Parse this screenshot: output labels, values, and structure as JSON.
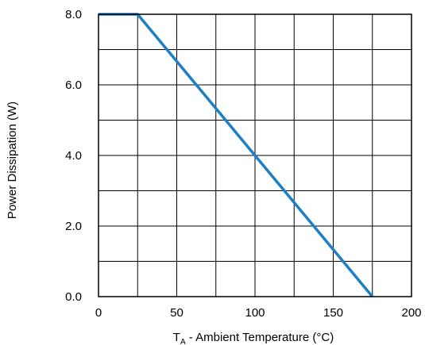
{
  "chart_data": {
    "type": "line",
    "title": "",
    "xlabel_main": "T",
    "xlabel_sub": "A",
    "xlabel_rest": " - Ambient Temperature (°C)",
    "ylabel": "Power Dissipation (W)",
    "xlim": [
      0,
      200
    ],
    "ylim": [
      0,
      8
    ],
    "xticks": [
      0,
      50,
      100,
      150,
      200
    ],
    "xtick_labels": [
      "0",
      "50",
      "100",
      "150",
      "200"
    ],
    "yticks": [
      0,
      2,
      4,
      6,
      8
    ],
    "ytick_labels": [
      "0.0",
      "2.0",
      "4.0",
      "6.0",
      "8.0"
    ],
    "x_minor_grid": [
      25,
      75,
      125,
      175
    ],
    "y_minor_grid": [
      1,
      3,
      5,
      7
    ],
    "grid": true,
    "series": [
      {
        "color": "#1f7fc4",
        "x": [
          0,
          25,
          175
        ],
        "y": [
          8,
          8,
          0
        ]
      }
    ]
  }
}
